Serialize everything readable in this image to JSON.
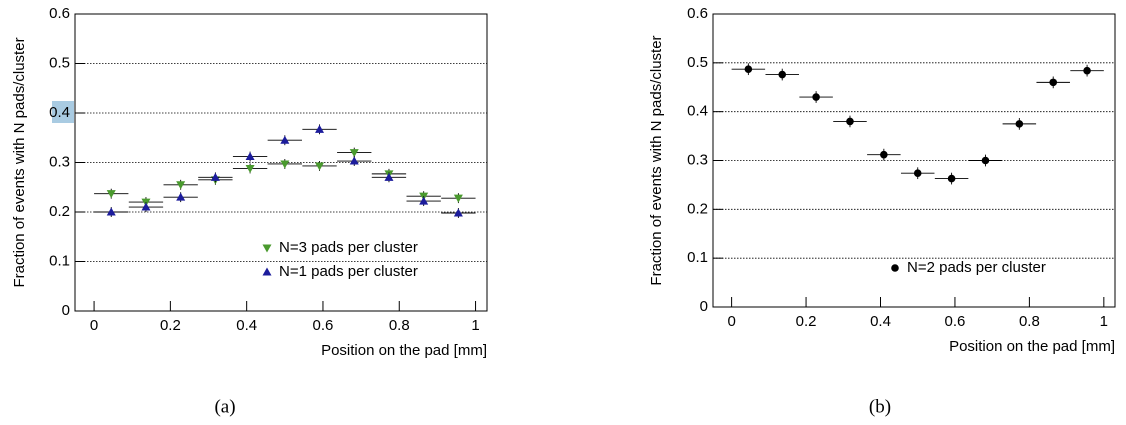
{
  "chart_data": [
    {
      "type": "scatter",
      "caption": "(a)",
      "x_label": "Position on the pad [mm]",
      "y_label": "Fraction of events with N pads/cluster",
      "x": [
        0.045,
        0.136,
        0.227,
        0.318,
        0.409,
        0.5,
        0.591,
        0.682,
        0.773,
        0.864,
        0.955
      ],
      "xerr": 0.045,
      "series": [
        {
          "name": "N=3 pads per cluster",
          "color": "#4a9a2e",
          "marker": "triangle-down",
          "yerr": 0.01,
          "values": [
            0.237,
            0.22,
            0.255,
            0.265,
            0.288,
            0.297,
            0.293,
            0.32,
            0.277,
            0.232,
            0.228
          ]
        },
        {
          "name": "N=1 pads per cluster",
          "color": "#1c1c9c",
          "marker": "triangle-up",
          "yerr": 0.01,
          "values": [
            0.2,
            0.21,
            0.23,
            0.27,
            0.312,
            0.345,
            0.367,
            0.303,
            0.27,
            0.222,
            0.198
          ]
        }
      ],
      "xlim": [
        -0.05,
        1.03
      ],
      "ylim": [
        0,
        0.6
      ],
      "xticks": [
        0,
        0.2,
        0.4,
        0.6,
        0.8,
        1
      ],
      "yticks": [
        0,
        0.1,
        0.2,
        0.3,
        0.4,
        0.5,
        0.6
      ],
      "grid": true,
      "legend": "bottom-right"
    },
    {
      "type": "scatter",
      "caption": "(b)",
      "x_label": "Position on the pad [mm]",
      "y_label": "Fraction of events with N pads/cluster",
      "x": [
        0.045,
        0.136,
        0.227,
        0.318,
        0.409,
        0.5,
        0.591,
        0.682,
        0.773,
        0.864,
        0.955
      ],
      "xerr": 0.045,
      "series": [
        {
          "name": "N=2 pads per cluster",
          "color": "#000000",
          "marker": "circle",
          "yerr": 0.012,
          "values": [
            0.487,
            0.476,
            0.43,
            0.38,
            0.312,
            0.274,
            0.263,
            0.3,
            0.375,
            0.46,
            0.484
          ]
        }
      ],
      "xlim": [
        -0.05,
        1.03
      ],
      "ylim": [
        0,
        0.6
      ],
      "xticks": [
        0,
        0.2,
        0.4,
        0.6,
        0.8,
        1
      ],
      "yticks": [
        0,
        0.1,
        0.2,
        0.3,
        0.4,
        0.5,
        0.6
      ],
      "grid": true,
      "legend": "bottom-right"
    }
  ]
}
